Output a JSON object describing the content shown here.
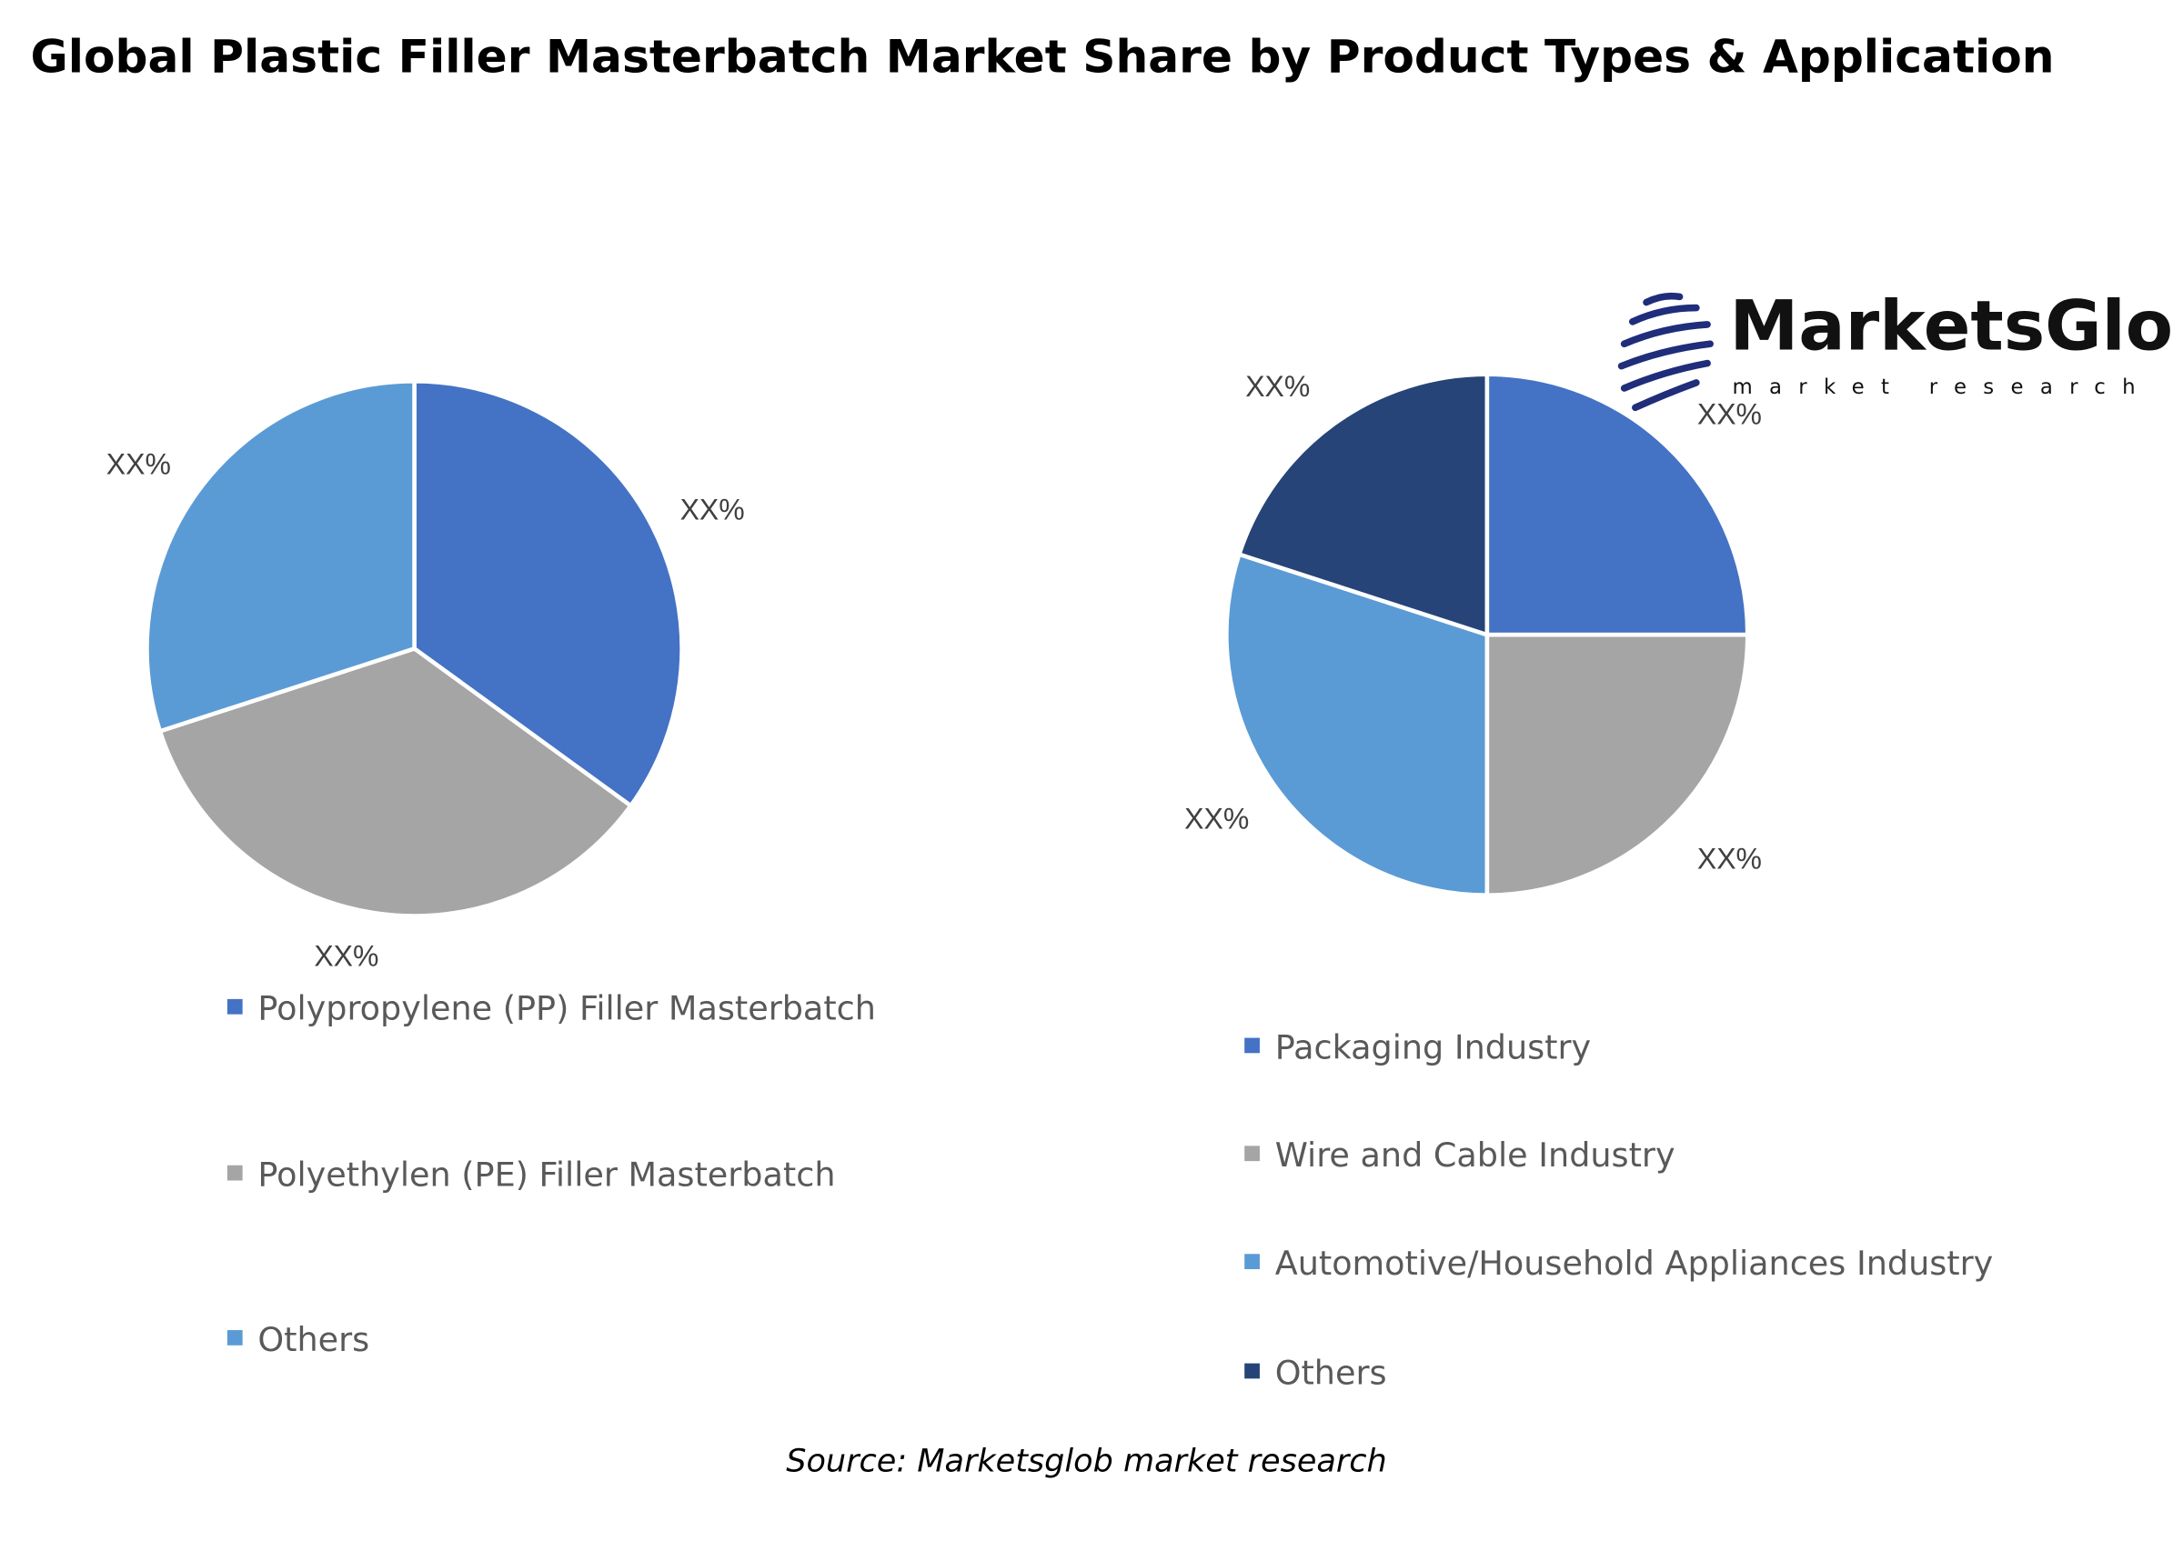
{
  "title": "Global Plastic Filler Masterbatch Market Share by Product Types & Application",
  "source": "Source: Marketsglob market research",
  "logo": {
    "name": "MarketsGlob",
    "tagline": "market research"
  },
  "colors": {
    "blue": "#4472C4",
    "gray": "#A5A5A5",
    "light_blue": "#5B9BD5",
    "navy": "#264478"
  },
  "chart_data": [
    {
      "type": "pie",
      "title": "",
      "categories": [
        "Polypropylene (PP) Filler Masterbatch",
        "Polyethylen (PE) Filler Masterbatch",
        "Others"
      ],
      "values": [
        35,
        35,
        30
      ],
      "data_labels": [
        "XX%",
        "XX%",
        "XX%"
      ],
      "colors": [
        "#4472C4",
        "#A5A5A5",
        "#5B9BD5"
      ],
      "legend_position": "bottom"
    },
    {
      "type": "pie",
      "title": "",
      "categories": [
        "Packaging Industry",
        "Wire and Cable Industry",
        "Automotive/Household Appliances Industry",
        "Others"
      ],
      "values": [
        25,
        25,
        30,
        20
      ],
      "data_labels": [
        "XX%",
        "XX%",
        "XX%",
        "XX%"
      ],
      "colors": [
        "#4472C4",
        "#A5A5A5",
        "#5B9BD5",
        "#264478"
      ],
      "legend_position": "bottom"
    }
  ]
}
